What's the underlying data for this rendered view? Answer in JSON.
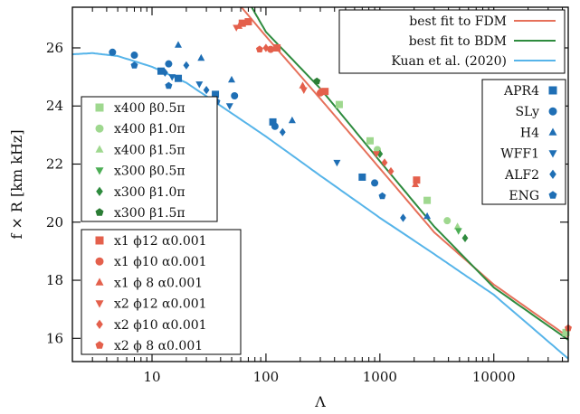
{
  "chart_data": {
    "type": "scatter",
    "xlabel": "Λ",
    "ylabel": "f × R [km kHz]",
    "xscale": "log",
    "xlim": [
      2,
      45000
    ],
    "ylim": [
      15.2,
      27.4
    ],
    "xticks": [
      10,
      100,
      1000,
      10000
    ],
    "xtick_labels": [
      "10",
      "100",
      "1000",
      "10000"
    ],
    "yticks": [
      16,
      18,
      20,
      22,
      24,
      26
    ],
    "ytick_labels": [
      "16",
      "18",
      "20",
      "22",
      "24",
      "26"
    ],
    "grid": false,
    "colors": {
      "fdm": "#e6705a",
      "bdm": "#2e8b3e",
      "kuan": "#56b4e9",
      "eos": "#1f6fb5",
      "light_green": "#9fd88f",
      "mid_green": "#4cae55",
      "dark_green": "#2b7d35",
      "red": "#e4604c"
    },
    "fits": [
      {
        "name": "best fit to FDM",
        "color": "#e6705a",
        "points": [
          [
            50,
            27.8
          ],
          [
            100,
            26.4
          ],
          [
            300,
            24.25
          ],
          [
            1000,
            21.85
          ],
          [
            3000,
            19.65
          ],
          [
            10000,
            17.85
          ],
          [
            45000,
            16.05
          ]
        ]
      },
      {
        "name": "best fit to BDM",
        "color": "#2e8b3e",
        "points": [
          [
            75,
            27.4
          ],
          [
            100,
            26.55
          ],
          [
            300,
            24.6
          ],
          [
            1000,
            22.1
          ],
          [
            3000,
            19.85
          ],
          [
            10000,
            17.75
          ],
          [
            45000,
            15.95
          ]
        ]
      },
      {
        "name": "Kuan et al. (2020)",
        "color": "#56b4e9",
        "points": [
          [
            2,
            25.78
          ],
          [
            3,
            25.82
          ],
          [
            5,
            25.72
          ],
          [
            10,
            25.35
          ],
          [
            20,
            24.8
          ],
          [
            50,
            23.75
          ],
          [
            100,
            22.95
          ],
          [
            300,
            21.6
          ],
          [
            1000,
            20.15
          ],
          [
            3000,
            18.9
          ],
          [
            10000,
            17.5
          ],
          [
            45000,
            15.3
          ]
        ]
      }
    ],
    "series": [
      {
        "name": "APR4",
        "marker": "square",
        "color": "#1f6fb5",
        "points": [
          [
            12,
            25.2
          ],
          [
            17,
            24.95
          ],
          [
            36,
            24.4
          ],
          [
            115,
            23.45
          ],
          [
            700,
            21.55
          ]
        ]
      },
      {
        "name": "SLy",
        "marker": "circle",
        "color": "#1f6fb5",
        "points": [
          [
            4.5,
            25.85
          ],
          [
            7,
            25.75
          ],
          [
            14,
            25.45
          ],
          [
            53,
            24.35
          ],
          [
            120,
            23.3
          ],
          [
            900,
            21.35
          ]
        ]
      },
      {
        "name": "H4",
        "marker": "triangle-up",
        "color": "#1f6fb5",
        "points": [
          [
            17,
            26.1
          ],
          [
            27,
            25.65
          ],
          [
            50,
            24.9
          ],
          [
            170,
            23.5
          ],
          [
            2600,
            20.2
          ]
        ]
      },
      {
        "name": "WFF1",
        "marker": "triangle-down",
        "color": "#1f6fb5",
        "points": [
          [
            15,
            25.0
          ],
          [
            26,
            24.75
          ],
          [
            48,
            24.0
          ],
          [
            420,
            22.05
          ]
        ]
      },
      {
        "name": "ALF2",
        "marker": "diamond",
        "color": "#1f6fb5",
        "points": [
          [
            13,
            25.15
          ],
          [
            20,
            25.4
          ],
          [
            30,
            24.55
          ],
          [
            140,
            23.1
          ],
          [
            1600,
            20.15
          ]
        ]
      },
      {
        "name": "ENG",
        "marker": "pentagon",
        "color": "#1f6fb5",
        "points": [
          [
            7,
            25.4
          ],
          [
            14,
            24.7
          ],
          [
            37,
            24.15
          ],
          [
            1050,
            20.9
          ]
        ]
      },
      {
        "name": "x400 β0.5π",
        "marker": "square",
        "color": "#9fd88f",
        "points": [
          [
            440,
            24.05
          ],
          [
            820,
            22.8
          ],
          [
            2600,
            20.75
          ],
          [
            43000,
            16.2
          ]
        ]
      },
      {
        "name": "x400 β1.0π",
        "marker": "circle",
        "color": "#9fd88f",
        "points": [
          [
            950,
            22.5
          ],
          [
            3900,
            20.05
          ]
        ]
      },
      {
        "name": "x400 β1.5π",
        "marker": "triangle-up",
        "color": "#9fd88f",
        "points": [
          [
            4800,
            19.85
          ]
        ]
      },
      {
        "name": "x300 β0.5π",
        "marker": "triangle-down",
        "color": "#4cae55",
        "points": [
          [
            4900,
            19.7
          ]
        ]
      },
      {
        "name": "x300 β1.0π",
        "marker": "diamond",
        "color": "#2e8b3e",
        "points": [
          [
            1000,
            22.35
          ],
          [
            5600,
            19.45
          ]
        ]
      },
      {
        "name": "x300 β1.5π",
        "marker": "pentagon",
        "color": "#2b7d35",
        "points": [
          [
            280,
            24.85
          ]
        ]
      },
      {
        "name": "x1 ϕ12 α0.001",
        "marker": "square",
        "color": "#e4604c",
        "points": [
          [
            62,
            26.85
          ],
          [
            70,
            26.9
          ],
          [
            125,
            26.0
          ],
          [
            330,
            24.5
          ],
          [
            2100,
            21.45
          ]
        ]
      },
      {
        "name": "x1 ϕ10 α0.001",
        "marker": "circle",
        "color": "#e4604c",
        "points": [
          [
            110,
            25.95
          ],
          [
            300,
            24.45
          ]
        ]
      },
      {
        "name": "x1 ϕ 8 α0.001",
        "marker": "triangle-up",
        "color": "#e4604c",
        "points": [
          [
            58,
            26.75
          ],
          [
            210,
            24.7
          ],
          [
            2050,
            21.3
          ]
        ]
      },
      {
        "name": "x2 ϕ12 α0.001",
        "marker": "triangle-down",
        "color": "#e4604c",
        "points": [
          [
            55,
            26.7
          ],
          [
            215,
            24.55
          ],
          [
            930,
            22.35
          ]
        ]
      },
      {
        "name": "x2 ϕ10 α0.001",
        "marker": "diamond",
        "color": "#e4604c",
        "points": [
          [
            100,
            26.0
          ],
          [
            300,
            24.5
          ],
          [
            1100,
            22.05
          ],
          [
            1250,
            21.75
          ]
        ]
      },
      {
        "name": "x2 ϕ 8 α0.001",
        "marker": "pentagon",
        "color": "#e4604c",
        "points": [
          [
            88,
            25.95
          ],
          [
            45000,
            16.35
          ]
        ]
      }
    ],
    "legend_fits": {
      "placement": "top-right",
      "entries": [
        "best fit to FDM",
        "best fit to BDM",
        "Kuan et al. (2020)"
      ]
    },
    "legend_eos": {
      "placement": "right",
      "entries": [
        "APR4",
        "SLy",
        "H4",
        "WFF1",
        "ALF2",
        "ENG"
      ]
    },
    "legend_green": {
      "placement": "left",
      "entries": [
        "x400 β0.5π",
        "x400 β1.0π",
        "x400 β1.5π",
        "x300 β0.5π",
        "x300 β1.0π",
        "x300 β1.5π"
      ]
    },
    "legend_red": {
      "placement": "bottom-left",
      "entries": [
        "x1 ϕ12 α0.001",
        "x1 ϕ10 α0.001",
        "x1 ϕ 8 α0.001",
        "x2 ϕ12 α0.001",
        "x2 ϕ10 α0.001",
        "x2 ϕ 8 α0.001"
      ]
    }
  }
}
